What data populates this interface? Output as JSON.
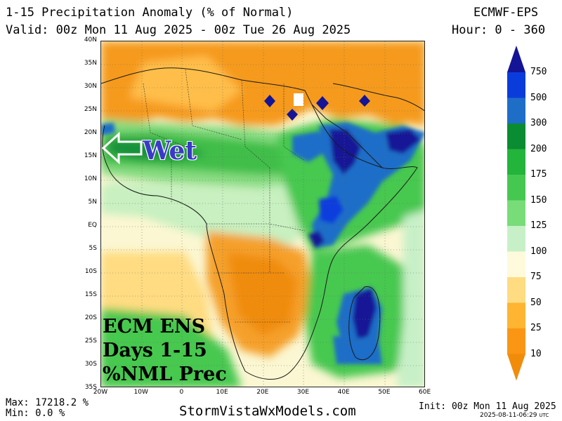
{
  "header": {
    "title": "1-15 Precipitation Anomaly (% of Normal)",
    "valid": "Valid: 00z Mon 11 Aug 2025 - 00z Tue 26 Aug 2025",
    "model": "ECMWF-EPS",
    "hour": "Hour: 0 - 360"
  },
  "axes": {
    "lat_labels": [
      "40N",
      "35N",
      "30N",
      "25N",
      "20N",
      "15N",
      "10N",
      "5N",
      "EQ",
      "5S",
      "10S",
      "15S",
      "20S",
      "25S",
      "30S",
      "35S"
    ],
    "lon_labels": [
      "20W",
      "10W",
      "0",
      "10E",
      "20E",
      "30E",
      "40E",
      "50E",
      "60E"
    ]
  },
  "overlay": {
    "wet_label": "Wet",
    "line1": "ECM ENS",
    "line2": "Days 1-15",
    "line3": "%NML Prec"
  },
  "legend": {
    "labels": [
      "750",
      "500",
      "300",
      "200",
      "175",
      "150",
      "125",
      "100",
      "75",
      "50",
      "25",
      "10"
    ],
    "colors": [
      "#141496",
      "#0a3cdc",
      "#1e6ec8",
      "#0a8c32",
      "#23b43c",
      "#46c850",
      "#78dc78",
      "#c8f0c8",
      "#fffadc",
      "#ffdc82",
      "#ffb432",
      "#fa9614",
      "#f08c0a"
    ]
  },
  "footer": {
    "max": "Max: 17218.2 %",
    "min": "Min: 0.0 %",
    "site": "StormVistaWxModels.com",
    "init": "Init: 00z Mon 11 Aug 2025",
    "timestamp": "2025-08-11-06:29",
    "tz": "UTC"
  }
}
